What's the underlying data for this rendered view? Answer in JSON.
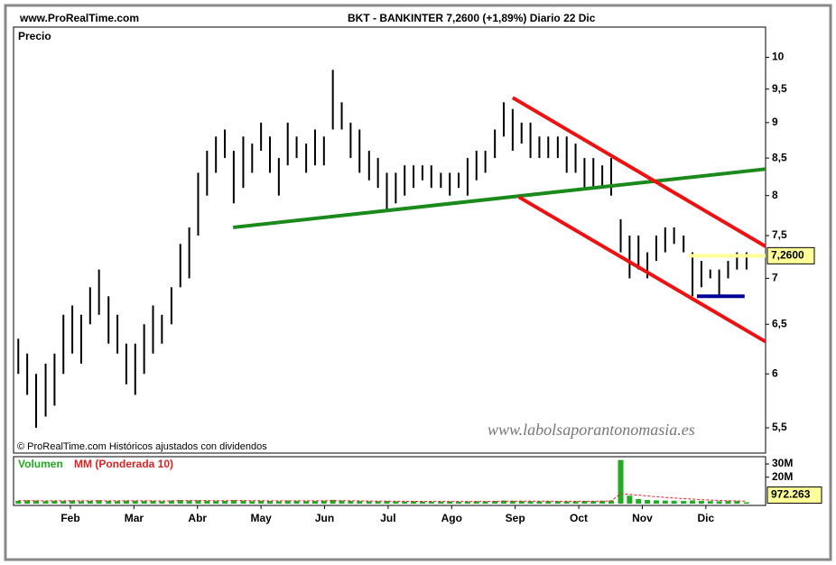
{
  "chart_data": [
    {
      "type": "hilo",
      "source": "www.ProRealTime.com",
      "title": "BKT - BANKINTER    7,2600 (+1,89%)   Diario  22 Dic",
      "y_label": "Precio",
      "footnote": "© ProRealTime.com Históricos ajustados con dividendos",
      "watermark": "www.labolsaporantonomasia.es",
      "color": "#000000",
      "log_scale": true,
      "xlim": [
        1.105,
        12.94
      ],
      "xticks": [
        {
          "value": 2,
          "label": "Feb"
        },
        {
          "value": 3,
          "label": "Mar"
        },
        {
          "value": 4,
          "label": "Abr"
        },
        {
          "value": 5,
          "label": "May"
        },
        {
          "value": 6,
          "label": "Jun"
        },
        {
          "value": 7,
          "label": "Jul"
        },
        {
          "value": 8,
          "label": "Ago"
        },
        {
          "value": 9,
          "label": "Sep"
        },
        {
          "value": 10,
          "label": "Oct"
        },
        {
          "value": 11,
          "label": "Nov"
        },
        {
          "value": 12,
          "label": "Dic"
        }
      ],
      "ylim": [
        5.28,
        10.5
      ],
      "yticks": [
        {
          "value": 5.5,
          "label": "5,5"
        },
        6,
        {
          "value": 6.5,
          "label": "6,5"
        },
        7,
        {
          "value": 7.5,
          "label": "7,5"
        },
        8,
        {
          "value": 8.5,
          "label": "8,5"
        },
        9,
        {
          "value": 9.5,
          "label": "9,5"
        },
        10
      ],
      "x": [
        1.18,
        1.32,
        1.46,
        1.61,
        1.75,
        1.89,
        2.03,
        2.17,
        2.31,
        2.45,
        2.6,
        2.74,
        2.88,
        3.02,
        3.16,
        3.3,
        3.44,
        3.59,
        3.73,
        3.87,
        4.01,
        4.15,
        4.29,
        4.43,
        4.57,
        4.72,
        4.86,
        5.0,
        5.14,
        5.28,
        5.42,
        5.56,
        5.71,
        5.85,
        5.99,
        6.13,
        6.27,
        6.41,
        6.55,
        6.7,
        6.84,
        6.98,
        7.12,
        7.26,
        7.4,
        7.54,
        7.68,
        7.83,
        7.97,
        8.11,
        8.25,
        8.39,
        8.53,
        8.68,
        8.82,
        8.96,
        9.1,
        9.24,
        9.38,
        9.52,
        9.67,
        9.81,
        9.95,
        10.09,
        10.23,
        10.37,
        10.51,
        10.66,
        10.8,
        10.94,
        11.08,
        11.22,
        11.36,
        11.5,
        11.65,
        11.79,
        11.93,
        12.07,
        12.21,
        12.35,
        12.49,
        12.64
      ],
      "high": [
        6.35,
        6.2,
        6.0,
        6.1,
        6.2,
        6.6,
        6.7,
        6.6,
        6.9,
        7.1,
        6.8,
        6.6,
        6.3,
        6.3,
        6.5,
        6.7,
        6.6,
        6.9,
        7.4,
        7.6,
        8.3,
        8.6,
        8.8,
        8.9,
        8.6,
        8.8,
        8.7,
        9.0,
        8.8,
        8.5,
        9.0,
        8.8,
        8.7,
        8.9,
        8.8,
        9.8,
        9.3,
        9.0,
        8.9,
        8.6,
        8.5,
        8.3,
        8.3,
        8.4,
        8.4,
        8.4,
        8.4,
        8.3,
        8.3,
        8.3,
        8.5,
        8.6,
        8.6,
        8.9,
        9.3,
        9.2,
        9.0,
        9.0,
        8.8,
        8.8,
        8.8,
        8.8,
        8.7,
        8.5,
        8.5,
        8.4,
        8.5,
        7.7,
        7.5,
        7.5,
        7.3,
        7.5,
        7.6,
        7.6,
        7.5,
        7.3,
        7.2,
        7.1,
        7.1,
        7.2,
        7.3,
        7.3
      ],
      "low": [
        6.0,
        5.8,
        5.5,
        5.6,
        5.7,
        6.0,
        6.2,
        6.1,
        6.5,
        6.6,
        6.3,
        6.2,
        5.9,
        5.8,
        6.0,
        6.2,
        6.3,
        6.5,
        6.9,
        7.0,
        7.5,
        8.0,
        8.3,
        8.5,
        7.9,
        8.1,
        8.3,
        8.6,
        8.3,
        8.0,
        8.4,
        8.5,
        8.3,
        8.4,
        8.4,
        8.9,
        8.9,
        8.5,
        8.3,
        8.2,
        8.1,
        7.8,
        7.9,
        8.0,
        8.1,
        8.2,
        8.1,
        8.1,
        8.0,
        8.1,
        8.0,
        8.2,
        8.3,
        8.5,
        8.8,
        8.6,
        8.7,
        8.5,
        8.5,
        8.5,
        8.5,
        8.3,
        8.3,
        8.1,
        8.1,
        8.1,
        8.0,
        7.3,
        7.0,
        7.1,
        7.0,
        7.2,
        7.3,
        7.4,
        7.3,
        6.8,
        6.9,
        7.0,
        6.8,
        7.0,
        7.1,
        7.1
      ],
      "last_price": {
        "value": 7.26,
        "label": "7,2600"
      },
      "trendlines": [
        {
          "color": "#1a8a1a",
          "x": [
            4.56,
            12.94
          ],
          "y": [
            7.6,
            8.35
          ]
        },
        {
          "color": "#ee1111",
          "x": [
            8.96,
            12.94
          ],
          "y": [
            9.37,
            7.37
          ]
        },
        {
          "color": "#ee1111",
          "x": [
            9.06,
            12.94
          ],
          "y": [
            7.98,
            6.32
          ]
        },
        {
          "color": "#ffff99",
          "x": [
            11.72,
            12.94
          ],
          "y": [
            7.26,
            7.26
          ]
        },
        {
          "color": "#000099",
          "x": [
            11.86,
            12.61
          ],
          "y": [
            6.8,
            6.8
          ]
        }
      ]
    },
    {
      "type": "volume",
      "ylim": [
        0,
        35500000
      ],
      "yticks": [
        {
          "value": 20000000,
          "label": "20M"
        },
        {
          "value": 30000000,
          "label": "30M"
        }
      ],
      "last_value": {
        "value": 972263,
        "label": "972.263"
      },
      "series": [
        {
          "name": "Volumen",
          "color": "#22aa22",
          "values": [
            2100000,
            2500000,
            2300000,
            1900000,
            2200000,
            2000000,
            2400000,
            1800000,
            2100000,
            2600000,
            2000000,
            1900000,
            2300000,
            2200000,
            2000000,
            2100000,
            1800000,
            2400000,
            2700000,
            2300000,
            2500000,
            2200000,
            2000000,
            2100000,
            2600000,
            2300000,
            1900000,
            2200000,
            2000000,
            1800000,
            2400000,
            2100000,
            1900000,
            2000000,
            2200000,
            2800000,
            2300000,
            2000000,
            1900000,
            1700000,
            1800000,
            2000000,
            1700000,
            1600000,
            1800000,
            1700000,
            1500000,
            1600000,
            1700000,
            1500000,
            1600000,
            1800000,
            1700000,
            2000000,
            2300000,
            2100000,
            1900000,
            1800000,
            1700000,
            1900000,
            1800000,
            1700000,
            1800000,
            2000000,
            1900000,
            2100000,
            2300000,
            33000000,
            6000000,
            3500000,
            2800000,
            2500000,
            2300000,
            2200000,
            2000000,
            2400000,
            2100000,
            1900000,
            1800000,
            2000000,
            1900000,
            972263
          ]
        },
        {
          "name": "MM (Ponderada 10)",
          "color": "#dd2222",
          "values": [
            2200000,
            2200000,
            2200000,
            2100000,
            2100000,
            2100000,
            2200000,
            2100000,
            2100000,
            2200000,
            2100000,
            2100000,
            2100000,
            2100000,
            2100000,
            2100000,
            2000000,
            2100000,
            2200000,
            2300000,
            2300000,
            2300000,
            2200000,
            2200000,
            2300000,
            2300000,
            2200000,
            2200000,
            2100000,
            2100000,
            2100000,
            2100000,
            2100000,
            2100000,
            2100000,
            2200000,
            2200000,
            2200000,
            2100000,
            2000000,
            1900000,
            1900000,
            1800000,
            1800000,
            1700000,
            1700000,
            1700000,
            1600000,
            1600000,
            1600000,
            1600000,
            1600000,
            1600000,
            1700000,
            1800000,
            1900000,
            1900000,
            1900000,
            1900000,
            1900000,
            1800000,
            1800000,
            1800000,
            1800000,
            1800000,
            1900000,
            2000000,
            7500000,
            7000000,
            6400000,
            5800000,
            5200000,
            4700000,
            4200000,
            3800000,
            3400000,
            3000000,
            2700000,
            2400000,
            2200000,
            2100000,
            1800000
          ]
        }
      ]
    }
  ]
}
